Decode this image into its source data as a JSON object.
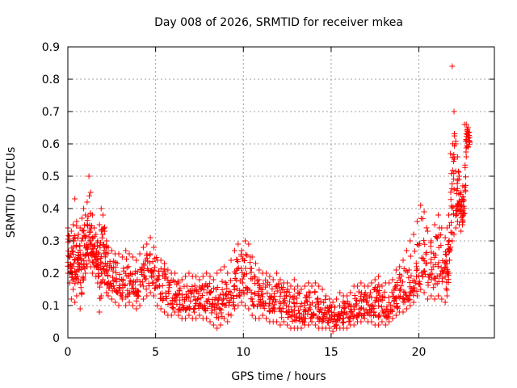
{
  "chart_data": {
    "type": "scatter",
    "title": "Day 008 of 2026, SRMTID for receiver mkea",
    "xlabel": "GPS time / hours",
    "ylabel": "SRMTID / TECUs",
    "xlim": [
      0,
      24.3
    ],
    "ylim": [
      0,
      0.9
    ],
    "x_ticks": [
      0,
      5,
      10,
      15,
      20
    ],
    "x_tick_labels": [
      "0",
      "5",
      "10",
      "15",
      "20"
    ],
    "y_ticks": [
      0,
      0.1,
      0.2,
      0.3,
      0.4,
      0.5,
      0.6,
      0.7,
      0.8,
      0.9
    ],
    "y_tick_labels": [
      "0",
      "0.1",
      "0.2",
      "0.3",
      "0.4",
      "0.5",
      "0.6",
      "0.7",
      "0.8",
      "0.9"
    ],
    "grid": true,
    "marker": "+",
    "marker_color": "#ff0000",
    "series": [
      {
        "name": "SRMTID",
        "x": [
          0.0,
          0.1,
          0.2,
          0.3,
          0.4,
          0.5,
          0.6,
          0.7,
          0.8,
          0.9,
          1.0,
          1.1,
          1.2,
          1.3,
          1.4,
          1.5,
          1.6,
          1.7,
          1.8,
          1.9,
          2.0,
          2.1,
          2.2,
          2.3,
          2.5,
          2.7,
          2.9,
          3.1,
          3.3,
          3.5,
          3.7,
          3.9,
          4.1,
          4.3,
          4.5,
          4.7,
          4.9,
          5.1,
          5.3,
          5.5,
          5.7,
          5.9,
          6.1,
          6.3,
          6.5,
          6.7,
          6.9,
          7.1,
          7.3,
          7.5,
          7.7,
          7.9,
          8.1,
          8.3,
          8.5,
          8.7,
          8.9,
          9.1,
          9.3,
          9.5,
          9.7,
          9.9,
          10.1,
          10.3,
          10.5,
          10.7,
          10.9,
          11.1,
          11.3,
          11.5,
          11.7,
          11.9,
          12.1,
          12.3,
          12.5,
          12.7,
          12.9,
          13.1,
          13.3,
          13.5,
          13.7,
          13.9,
          14.1,
          14.3,
          14.5,
          14.7,
          14.9,
          15.1,
          15.3,
          15.5,
          15.7,
          15.9,
          16.1,
          16.3,
          16.5,
          16.7,
          16.9,
          17.1,
          17.3,
          17.5,
          17.7,
          17.9,
          18.1,
          18.3,
          18.5,
          18.7,
          18.9,
          19.1,
          19.3,
          19.5,
          19.7,
          19.9,
          20.1,
          20.3,
          20.5,
          20.7,
          20.9,
          21.1,
          21.3,
          21.5,
          21.6,
          21.7,
          21.8,
          21.9,
          22.0,
          22.1,
          22.2,
          22.3,
          22.4,
          22.5,
          22.6,
          22.7,
          22.8
        ],
        "y_high": [
          0.34,
          0.3,
          0.33,
          0.35,
          0.43,
          0.36,
          0.32,
          0.34,
          0.37,
          0.4,
          0.38,
          0.42,
          0.5,
          0.45,
          0.38,
          0.34,
          0.32,
          0.3,
          0.35,
          0.4,
          0.38,
          0.33,
          0.3,
          0.28,
          0.27,
          0.26,
          0.26,
          0.25,
          0.27,
          0.26,
          0.25,
          0.24,
          0.26,
          0.28,
          0.29,
          0.31,
          0.28,
          0.24,
          0.24,
          0.23,
          0.21,
          0.2,
          0.2,
          0.17,
          0.18,
          0.19,
          0.2,
          0.19,
          0.19,
          0.18,
          0.19,
          0.2,
          0.19,
          0.18,
          0.2,
          0.21,
          0.22,
          0.2,
          0.24,
          0.27,
          0.29,
          0.27,
          0.3,
          0.29,
          0.25,
          0.23,
          0.21,
          0.2,
          0.2,
          0.19,
          0.18,
          0.2,
          0.18,
          0.17,
          0.17,
          0.16,
          0.18,
          0.16,
          0.15,
          0.16,
          0.17,
          0.16,
          0.17,
          0.16,
          0.15,
          0.13,
          0.12,
          0.11,
          0.12,
          0.14,
          0.13,
          0.13,
          0.14,
          0.16,
          0.16,
          0.17,
          0.16,
          0.16,
          0.17,
          0.18,
          0.19,
          0.16,
          0.17,
          0.17,
          0.18,
          0.21,
          0.22,
          0.24,
          0.27,
          0.3,
          0.32,
          0.36,
          0.41,
          0.39,
          0.33,
          0.3,
          0.35,
          0.38,
          0.34,
          0.31,
          0.34,
          0.38,
          0.57,
          0.84,
          0.7,
          0.6,
          0.56,
          0.5,
          0.45,
          0.47,
          0.66,
          0.66,
          0.65
        ],
        "y_low": [
          0.2,
          0.17,
          0.12,
          0.15,
          0.11,
          0.13,
          0.18,
          0.09,
          0.14,
          0.18,
          0.2,
          0.22,
          0.24,
          0.22,
          0.2,
          0.22,
          0.19,
          0.17,
          0.08,
          0.13,
          0.18,
          0.17,
          0.14,
          0.13,
          0.12,
          0.11,
          0.1,
          0.12,
          0.1,
          0.11,
          0.1,
          0.09,
          0.1,
          0.12,
          0.13,
          0.14,
          0.13,
          0.1,
          0.09,
          0.08,
          0.07,
          0.07,
          0.08,
          0.07,
          0.06,
          0.06,
          0.07,
          0.06,
          0.06,
          0.07,
          0.06,
          0.06,
          0.05,
          0.04,
          0.03,
          0.04,
          0.06,
          0.05,
          0.07,
          0.09,
          0.1,
          0.11,
          0.1,
          0.09,
          0.07,
          0.06,
          0.06,
          0.07,
          0.06,
          0.05,
          0.05,
          0.05,
          0.04,
          0.05,
          0.04,
          0.03,
          0.03,
          0.03,
          0.03,
          0.04,
          0.04,
          0.05,
          0.04,
          0.03,
          0.03,
          0.03,
          0.03,
          0.02,
          0.03,
          0.03,
          0.03,
          0.03,
          0.04,
          0.04,
          0.05,
          0.05,
          0.06,
          0.05,
          0.05,
          0.04,
          0.04,
          0.05,
          0.04,
          0.05,
          0.06,
          0.07,
          0.08,
          0.08,
          0.09,
          0.1,
          0.11,
          0.13,
          0.15,
          0.14,
          0.12,
          0.13,
          0.12,
          0.13,
          0.12,
          0.11,
          0.13,
          0.2,
          0.28,
          0.3,
          0.32,
          0.34,
          0.36,
          0.35,
          0.33,
          0.36,
          0.4,
          0.56,
          0.59
        ]
      }
    ]
  }
}
